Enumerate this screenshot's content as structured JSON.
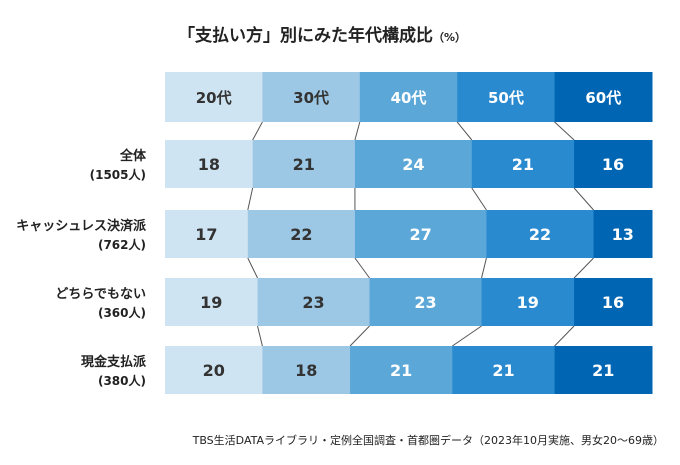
{
  "chart_data": {
    "type": "bar",
    "stacked": true,
    "orientation": "horizontal",
    "title": "「支払い方」別にみた年代構成比",
    "title_unit": "（%）",
    "header_segments": [
      "20代",
      "30代",
      "40代",
      "50代",
      "60代"
    ],
    "series": [
      {
        "name": "20代",
        "color": "#cfe4f2",
        "text_color": "#333333"
      },
      {
        "name": "30代",
        "color": "#9cc8e5",
        "text_color": "#333333"
      },
      {
        "name": "40代",
        "color": "#5aa7d8",
        "text_color": "#ffffff"
      },
      {
        "name": "50代",
        "color": "#2a8ad0",
        "text_color": "#ffffff"
      },
      {
        "name": "60代",
        "color": "#0065b3",
        "text_color": "#ffffff"
      }
    ],
    "categories": [
      {
        "label": "全体",
        "sub": "(1505人)",
        "values": [
          18,
          21,
          24,
          21,
          16
        ]
      },
      {
        "label": "キャッシュレス決済派",
        "sub": "(762人)",
        "values": [
          17,
          22,
          27,
          22,
          13
        ]
      },
      {
        "label": "どちらでもない",
        "sub": "(360人)",
        "values": [
          19,
          23,
          23,
          19,
          16
        ]
      },
      {
        "label": "現金支払派",
        "sub": "(380人)",
        "values": [
          20,
          18,
          21,
          21,
          21
        ]
      }
    ],
    "xlim": [
      0,
      100
    ],
    "source": "TBS生活DATAライブラリ・定例全国調査・首都圏データ（2023年10月実施、男女20〜69歳）"
  }
}
